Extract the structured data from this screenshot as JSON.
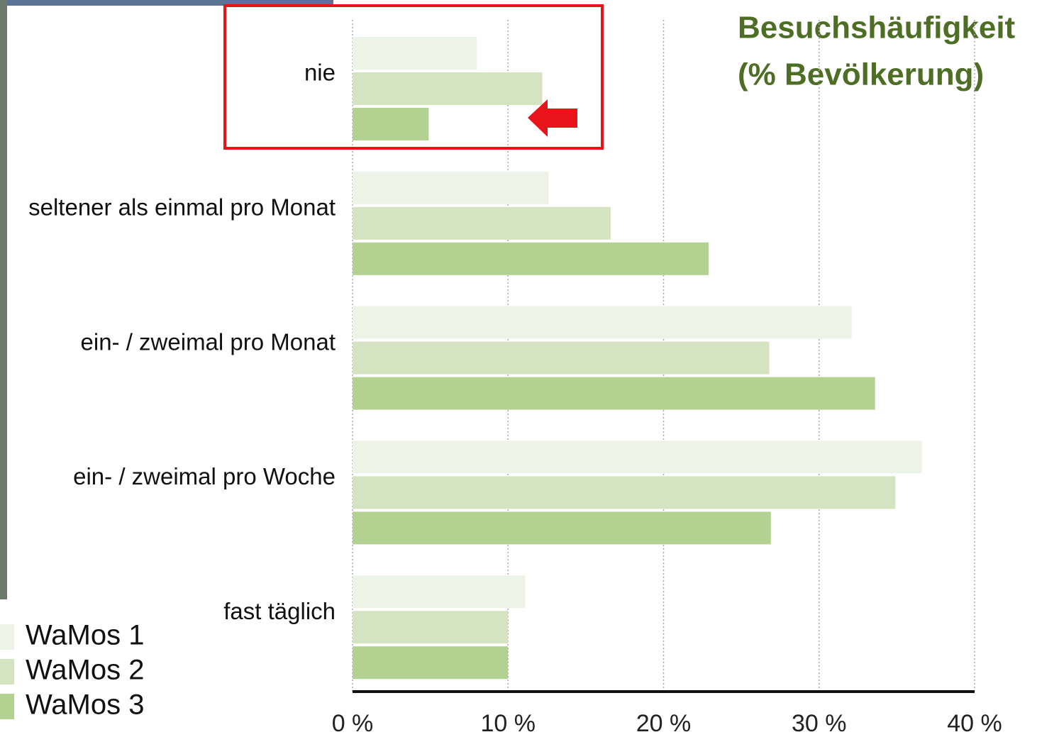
{
  "chart_data": {
    "type": "bar",
    "orientation": "horizontal",
    "title": "Besuchshäufigkeit",
    "subtitle": "(% Bevölkerung)",
    "categories": [
      "nie",
      "seltener als einmal pro Monat",
      "ein- / zweimal pro Monat",
      "ein- / zweimal pro Woche",
      "fast täglich"
    ],
    "series": [
      {
        "name": "WaMos 1",
        "color": "#eef3e7",
        "values": [
          8,
          12.6,
          32.1,
          36.6,
          11.1
        ]
      },
      {
        "name": "WaMos 2",
        "color": "#d4e3c0",
        "values": [
          12.2,
          16.6,
          26.8,
          34.9,
          10
        ]
      },
      {
        "name": "WaMos 3",
        "color": "#b3d190",
        "values": [
          4.9,
          22.9,
          33.6,
          26.9,
          10
        ]
      }
    ],
    "xlim": [
      0,
      40
    ],
    "xticks": [
      {
        "value": 0,
        "label": "0 %"
      },
      {
        "value": 10,
        "label": "10 %"
      },
      {
        "value": 20,
        "label": "20 %"
      },
      {
        "value": 30,
        "label": "30 %"
      },
      {
        "value": 40,
        "label": "40 %"
      }
    ],
    "grid": true,
    "legend": "bottom-left"
  }
}
